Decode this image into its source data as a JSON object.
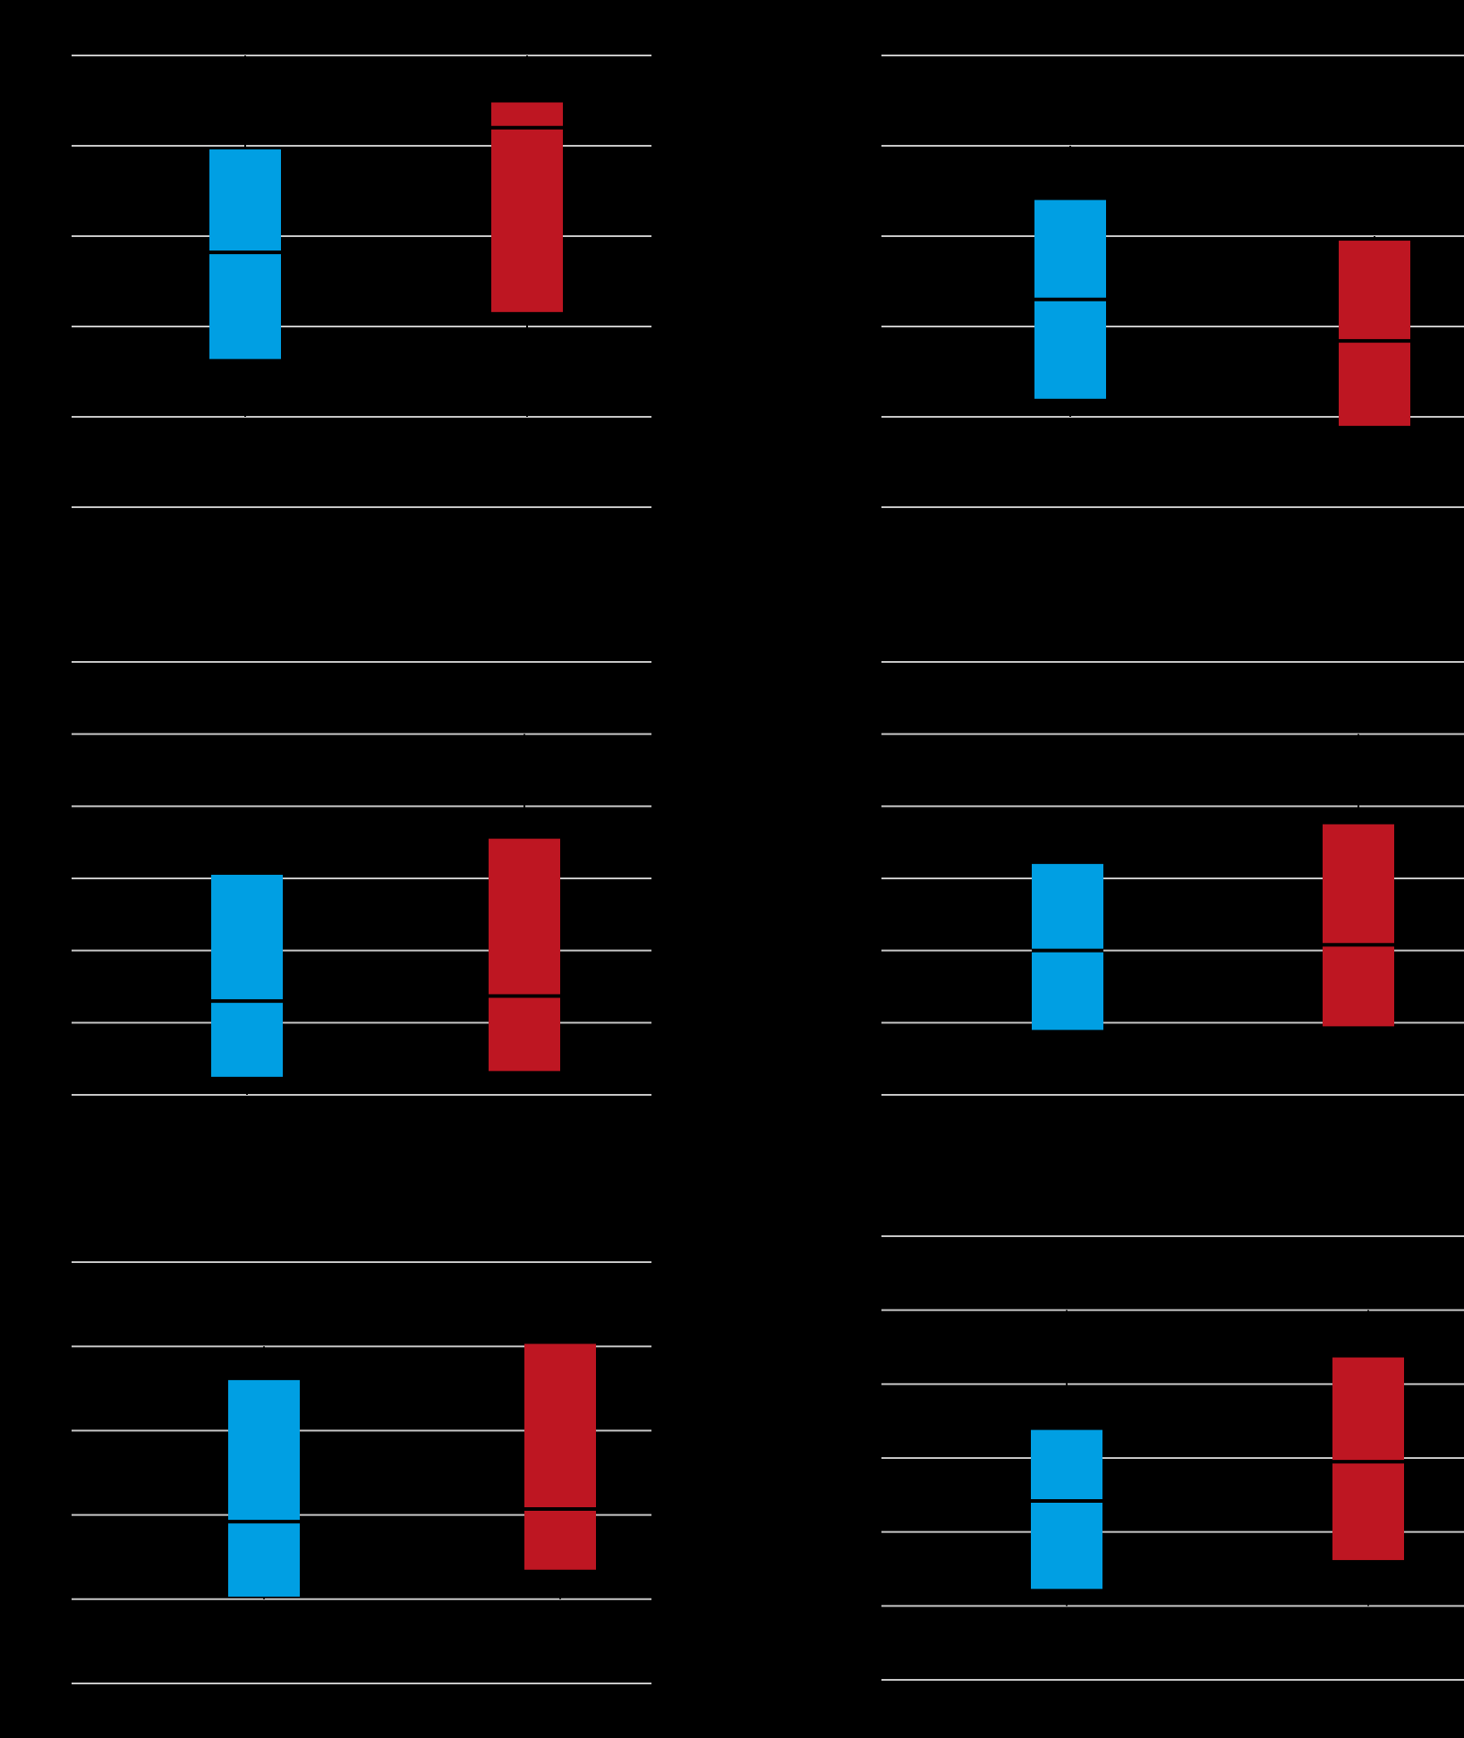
{
  "colors": {
    "background": "#000000",
    "grid": "#c8c8c8",
    "whisker": "#c8c8c8",
    "median": "#000000",
    "group_a": "#009fe3",
    "group_b": "#be1622"
  },
  "chart_data": [
    {
      "type": "box",
      "panel": "top-left",
      "ylim": [
        0,
        5
      ],
      "grid": true,
      "yticks": [
        0,
        1,
        2,
        3,
        4,
        5
      ],
      "series": [
        {
          "color_key": "group_a",
          "q1": 1.64,
          "median": 2.82,
          "q3": 3.96,
          "whisker_low": 1.0,
          "whisker_high": 5.0
        },
        {
          "color_key": "group_b",
          "q1": 2.16,
          "median": 4.2,
          "q3": 4.48,
          "whisker_low": 1.0,
          "whisker_high": 5.0
        }
      ]
    },
    {
      "type": "box",
      "panel": "top-right",
      "ylim": [
        0,
        5
      ],
      "grid": true,
      "yticks": [
        0,
        1,
        2,
        3,
        4,
        5
      ],
      "series": [
        {
          "color_key": "group_a",
          "q1": 1.2,
          "median": 2.3,
          "q3": 3.4,
          "whisker_low": 1.0,
          "whisker_high": 4.0
        },
        {
          "color_key": "group_b",
          "q1": 0.9,
          "median": 1.84,
          "q3": 2.95,
          "whisker_low": 0.9,
          "whisker_high": 3.0
        }
      ]
    },
    {
      "type": "box",
      "panel": "middle-left",
      "ylim": [
        0,
        6
      ],
      "grid": true,
      "yticks": [
        0,
        1,
        2,
        3,
        4,
        5,
        6
      ],
      "series": [
        {
          "color_key": "group_a",
          "q1": 0.25,
          "median": 1.3,
          "q3": 3.05,
          "whisker_low": 0.0,
          "whisker_high": 3.05
        },
        {
          "color_key": "group_b",
          "q1": 0.33,
          "median": 1.37,
          "q3": 3.55,
          "whisker_low": 0.33,
          "whisker_high": 5.0
        }
      ]
    },
    {
      "type": "box",
      "panel": "middle-right",
      "ylim": [
        0,
        6
      ],
      "grid": true,
      "yticks": [
        0,
        1,
        2,
        3,
        4,
        5,
        6
      ],
      "series": [
        {
          "color_key": "group_a",
          "q1": 0.9,
          "median": 2.0,
          "q3": 3.2,
          "whisker_low": 0.9,
          "whisker_high": 3.2
        },
        {
          "color_key": "group_b",
          "q1": 0.95,
          "median": 2.08,
          "q3": 3.75,
          "whisker_low": 0.95,
          "whisker_high": 5.0
        }
      ]
    },
    {
      "type": "box",
      "panel": "bottom-left",
      "ylim": [
        0,
        5
      ],
      "grid": true,
      "yticks": [
        0,
        1,
        2,
        3,
        4,
        5
      ],
      "series": [
        {
          "color_key": "group_a",
          "q1": 1.03,
          "median": 1.92,
          "q3": 3.6,
          "whisker_low": 1.0,
          "whisker_high": 4.0
        },
        {
          "color_key": "group_b",
          "q1": 1.35,
          "median": 2.07,
          "q3": 4.03,
          "whisker_low": 1.0,
          "whisker_high": 4.03
        }
      ]
    },
    {
      "type": "box",
      "panel": "bottom-right",
      "ylim": [
        0,
        6
      ],
      "grid": true,
      "yticks": [
        0,
        1,
        2,
        3,
        4,
        5,
        6
      ],
      "series": [
        {
          "color_key": "group_a",
          "q1": 1.23,
          "median": 2.42,
          "q3": 3.38,
          "whisker_low": 1.0,
          "whisker_high": 5.0
        },
        {
          "color_key": "group_b",
          "q1": 1.62,
          "median": 2.95,
          "q3": 4.36,
          "whisker_low": 1.0,
          "whisker_high": 5.0
        }
      ]
    }
  ]
}
